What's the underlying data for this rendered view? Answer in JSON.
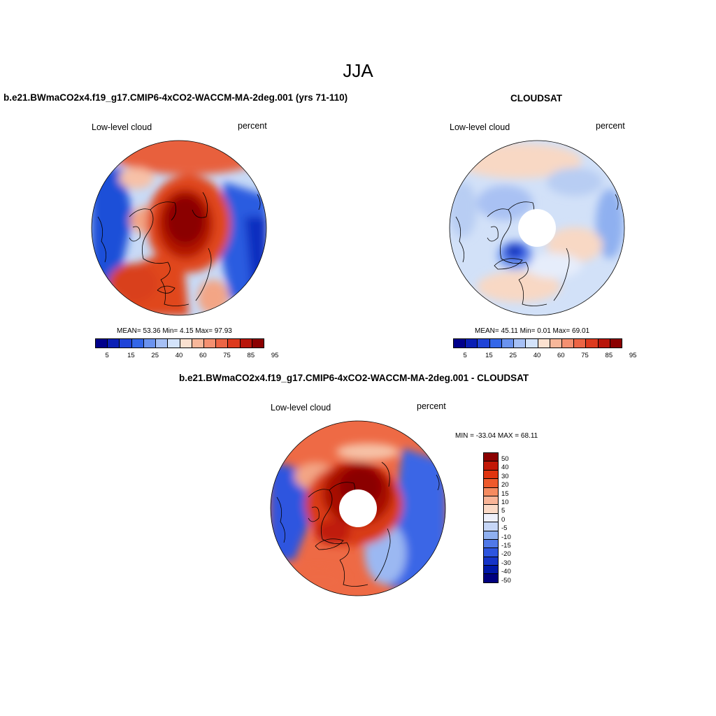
{
  "title": "JJA",
  "panels": {
    "top_left": {
      "title": "b.e21.BWmaCO2x4.f19_g17.CMIP6-4xCO2-WACCM-MA-2deg.001 (yrs 71-110)",
      "variable": "Low-level cloud",
      "units": "percent",
      "stats": "MEAN=  53.36  Min=   4.15  Max=  97.93"
    },
    "top_right": {
      "title": "CLOUDSAT",
      "variable": "Low-level cloud",
      "units": "percent",
      "stats": "MEAN=  45.11  Min=   0.01  Max=  69.01"
    },
    "bottom": {
      "title": "b.e21.BWmaCO2x4.f19_g17.CMIP6-4xCO2-WACCM-MA-2deg.001 - CLOUDSAT",
      "variable": "Low-level cloud",
      "units": "percent",
      "stats": "MIN = -33.04 MAX =  68.11"
    }
  },
  "colorbar_abs": {
    "colors": [
      "#00008b",
      "#0a1fb5",
      "#1f44d8",
      "#3366e8",
      "#6b93ef",
      "#a6c0f5",
      "#d3e3fa",
      "#fbe1d0",
      "#f7b79a",
      "#f39071",
      "#ec6545",
      "#dd3a1e",
      "#b8150a",
      "#8b0000"
    ],
    "ticks": [
      "5",
      "15",
      "25",
      "40",
      "60",
      "75",
      "85",
      "95"
    ]
  },
  "colorbar_diff": {
    "colors": [
      "#8b0000",
      "#c21807",
      "#e0340f",
      "#ee5a2c",
      "#f58b60",
      "#f9b497",
      "#fbd9c6",
      "#eef0fb",
      "#c6d6f6",
      "#8fb0f0",
      "#5079e8",
      "#2d55df",
      "#1534c8",
      "#0018a8",
      "#00007f"
    ],
    "ticks": [
      "50",
      "40",
      "30",
      "20",
      "15",
      "10",
      "5",
      "0",
      "-5",
      "-10",
      "-15",
      "-20",
      "-30",
      "-40",
      "-50"
    ]
  }
}
